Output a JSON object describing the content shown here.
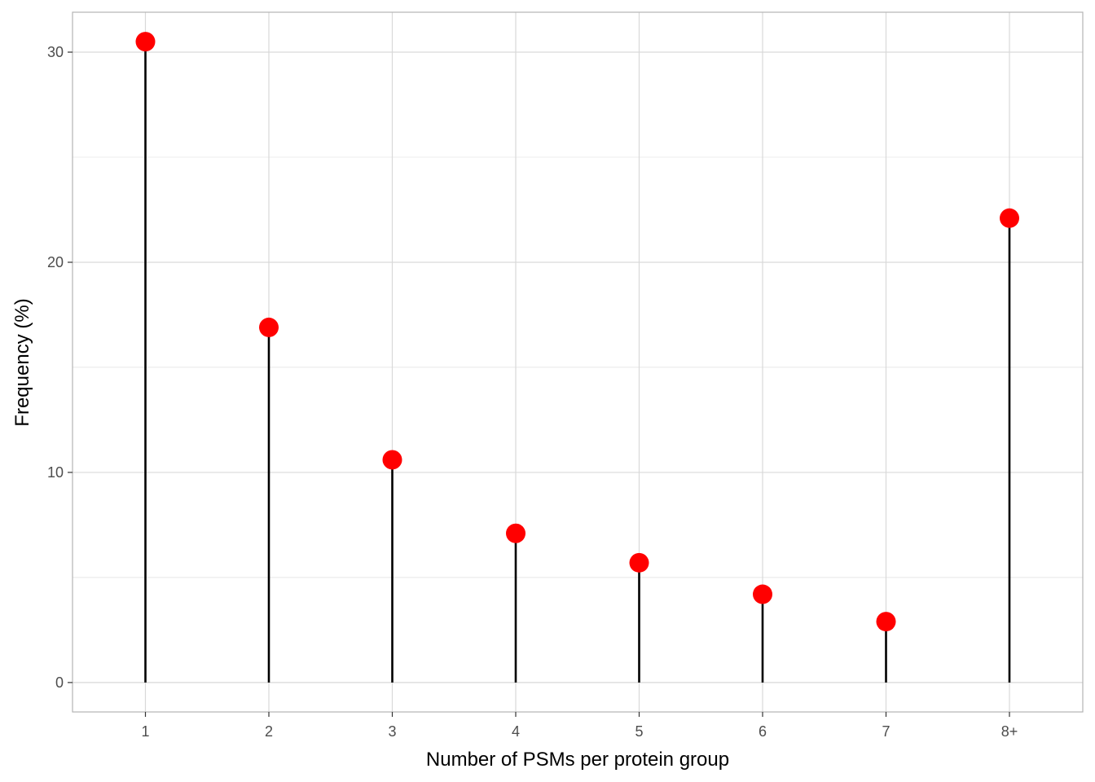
{
  "chart_data": {
    "type": "lollipop",
    "title": "",
    "xlabel": "Number of PSMs per protein group",
    "ylabel": "Frequency (%)",
    "categories": [
      "1",
      "2",
      "3",
      "4",
      "5",
      "6",
      "7",
      "8+"
    ],
    "values": [
      30.5,
      16.9,
      10.6,
      7.1,
      5.7,
      4.2,
      2.9,
      22.1
    ],
    "ylim": [
      -1.4,
      31.9
    ],
    "yticks": [
      0,
      10,
      20,
      30
    ],
    "ytick_labels": [
      "0",
      "10",
      "20",
      "30"
    ],
    "grid": true,
    "legend": "none",
    "colors": {
      "point": "#ff0000",
      "stem": "#000000",
      "grid": "#d9d9d9",
      "panel_border": "#b3b3b3"
    }
  }
}
